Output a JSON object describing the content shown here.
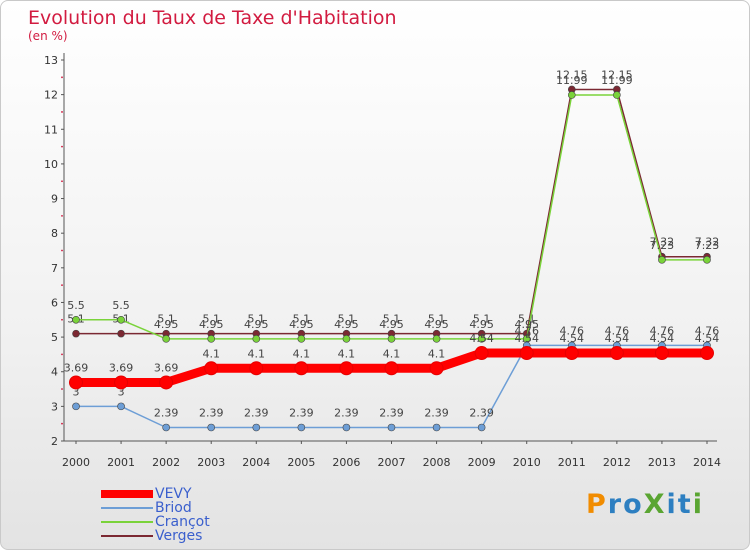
{
  "title": "Evolution du Taux de Taxe d'Habitation",
  "subtitle": "(en %)",
  "logo": {
    "text": "ProXiti",
    "colors": [
      "#f18c00",
      "#2d7fc1",
      "#5aa532"
    ]
  },
  "chart_data": {
    "type": "line",
    "title": "Evolution du Taux de Taxe d'Habitation",
    "ylabel": "(en %)",
    "xlabel": "",
    "ylim": [
      2,
      13
    ],
    "yticks": [
      "2",
      "3",
      "4",
      "5",
      "6",
      "7",
      "8",
      "9",
      "10",
      "11",
      "12",
      "13"
    ],
    "grid": false,
    "legend_position": "bottom-left",
    "categories": [
      "2000",
      "2001",
      "2002",
      "2003",
      "2004",
      "2005",
      "2006",
      "2007",
      "2008",
      "2009",
      "2010",
      "2011",
      "2012",
      "2013",
      "2014"
    ],
    "series": [
      {
        "name": "VEVY",
        "color": "#ff0000",
        "emphasis": true,
        "values": [
          3.69,
          3.69,
          3.69,
          4.1,
          4.1,
          4.1,
          4.1,
          4.1,
          4.1,
          4.54,
          4.54,
          4.54,
          4.54,
          4.54,
          4.54
        ],
        "labels": [
          "3.69",
          "3.69",
          "3.69",
          "4.1",
          "4.1",
          "4.1",
          "4.1",
          "4.1",
          "4.1",
          "4.54",
          "4.54",
          "4.54",
          "4.54",
          "4.54",
          "4.54"
        ]
      },
      {
        "name": "Briod",
        "color": "#6d9ed6",
        "emphasis": false,
        "values": [
          3,
          3,
          2.39,
          2.39,
          2.39,
          2.39,
          2.39,
          2.39,
          2.39,
          2.39,
          4.76,
          4.76,
          4.76,
          4.76,
          4.76
        ],
        "labels": [
          "3",
          "3",
          "2.39",
          "2.39",
          "2.39",
          "2.39",
          "2.39",
          "2.39",
          "2.39",
          "2.39",
          "4.76",
          "4.76",
          "4.76",
          "4.76",
          "4.76"
        ]
      },
      {
        "name": "Crançot",
        "color": "#7ad33a",
        "emphasis": false,
        "values": [
          5.5,
          5.5,
          4.95,
          4.95,
          4.95,
          4.95,
          4.95,
          4.95,
          4.95,
          4.95,
          4.95,
          11.99,
          11.99,
          7.23,
          7.23
        ],
        "labels": [
          "5.5",
          "5.5",
          "4.95",
          "4.95",
          "4.95",
          "4.95",
          "4.95",
          "4.95",
          "4.95",
          "4.95",
          "4.95",
          "11.99",
          "11.99",
          "7.23",
          "7.23"
        ]
      },
      {
        "name": "Verges",
        "color": "#7b2832",
        "emphasis": false,
        "values": [
          5.1,
          5.1,
          5.1,
          5.1,
          5.1,
          5.1,
          5.1,
          5.1,
          5.1,
          5.1,
          5.1,
          12.15,
          12.15,
          7.32,
          7.32
        ],
        "labels": [
          "5.1",
          "5.1",
          "5.1",
          "5.1",
          "5.1",
          "5.1",
          "5.1",
          "5.1",
          "5.1",
          "5.1",
          "5.1",
          "12.15",
          "12.15",
          "7.32",
          "7.32"
        ]
      }
    ]
  }
}
